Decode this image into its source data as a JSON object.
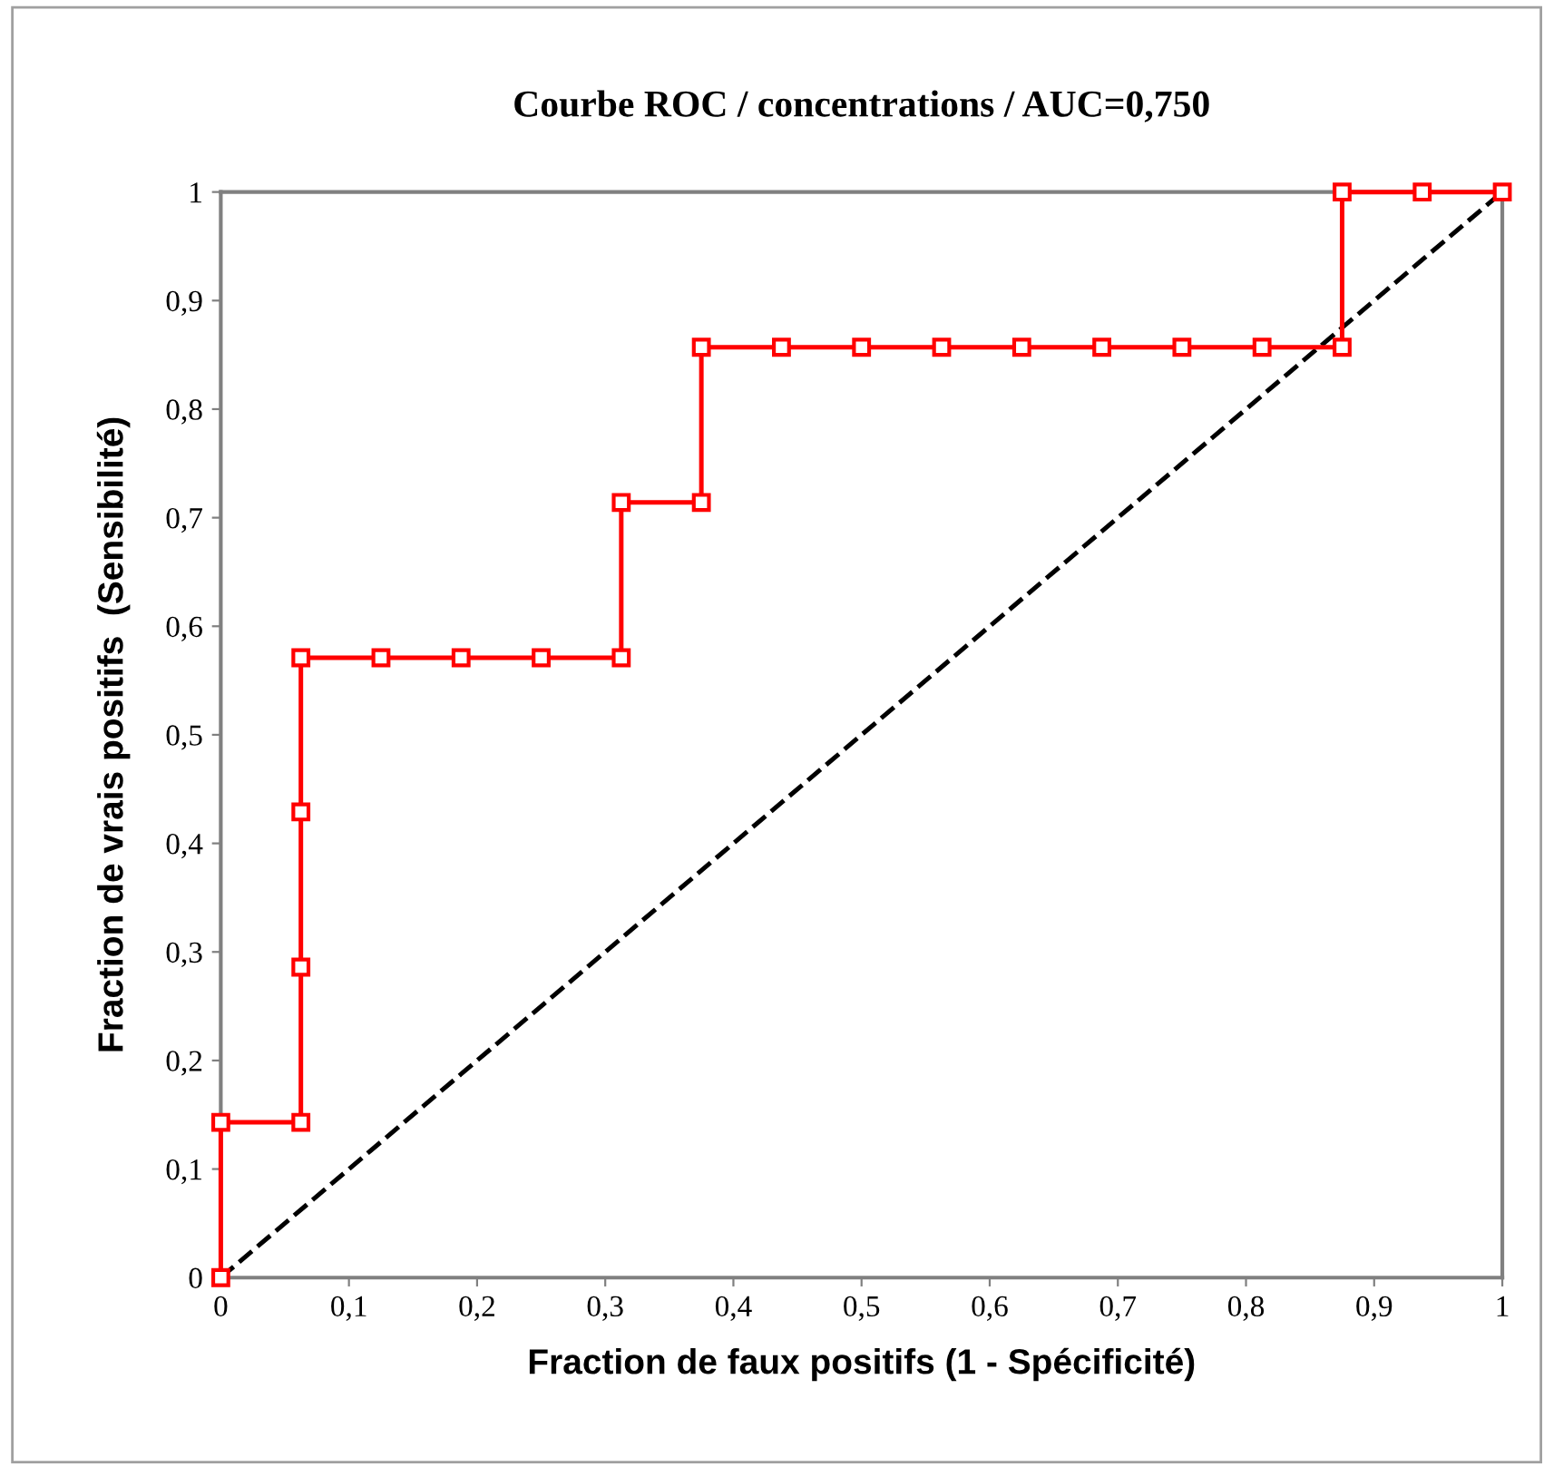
{
  "chart_data": {
    "type": "line",
    "title": "Courbe ROC / concentrations / AUC=0,750",
    "xlabel": "Fraction de faux positifs (1 - Spécificité)",
    "ylabel": "Fraction de vrais positifs  (Sensibilité)",
    "series": [
      {
        "color": "#ff0000",
        "marker": "square",
        "line_style": "solid",
        "x": [
          0,
          0,
          0.0625,
          0.0625,
          0.0625,
          0.0625,
          0.125,
          0.1875,
          0.25,
          0.3125,
          0.3125,
          0.375,
          0.375,
          0.4375,
          0.5,
          0.5625,
          0.625,
          0.6875,
          0.75,
          0.8125,
          0.875,
          0.875,
          0.9375,
          1
        ],
        "values": [
          0,
          0.143,
          0.143,
          0.286,
          0.429,
          0.571,
          0.571,
          0.571,
          0.571,
          0.571,
          0.714,
          0.714,
          0.857,
          0.857,
          0.857,
          0.857,
          0.857,
          0.857,
          0.857,
          0.857,
          0.857,
          1,
          1,
          1
        ]
      },
      {
        "color": "#000000",
        "marker": "none",
        "line_style": "dashed",
        "x": [
          0,
          1
        ],
        "values": [
          0,
          1
        ]
      }
    ],
    "xlim": [
      0,
      1
    ],
    "ylim": [
      0,
      1
    ],
    "xticks": [
      0,
      {
        "value": 0.1,
        "label": "0,1"
      },
      {
        "value": 0.2,
        "label": "0,2"
      },
      {
        "value": 0.3,
        "label": "0,3"
      },
      {
        "value": 0.4,
        "label": "0,4"
      },
      {
        "value": 0.5,
        "label": "0,5"
      },
      {
        "value": 0.6,
        "label": "0,6"
      },
      {
        "value": 0.7,
        "label": "0,7"
      },
      {
        "value": 0.8,
        "label": "0,8"
      },
      {
        "value": 0.9,
        "label": "0,9"
      },
      1
    ],
    "yticks": [
      0,
      {
        "value": 0.1,
        "label": "0,1"
      },
      {
        "value": 0.2,
        "label": "0,2"
      },
      {
        "value": 0.3,
        "label": "0,3"
      },
      {
        "value": 0.4,
        "label": "0,4"
      },
      {
        "value": 0.5,
        "label": "0,5"
      },
      {
        "value": 0.6,
        "label": "0,6"
      },
      {
        "value": 0.7,
        "label": "0,7"
      },
      {
        "value": 0.8,
        "label": "0,8"
      },
      {
        "value": 0.9,
        "label": "0,9"
      },
      1
    ],
    "grid": false,
    "legend": false
  }
}
